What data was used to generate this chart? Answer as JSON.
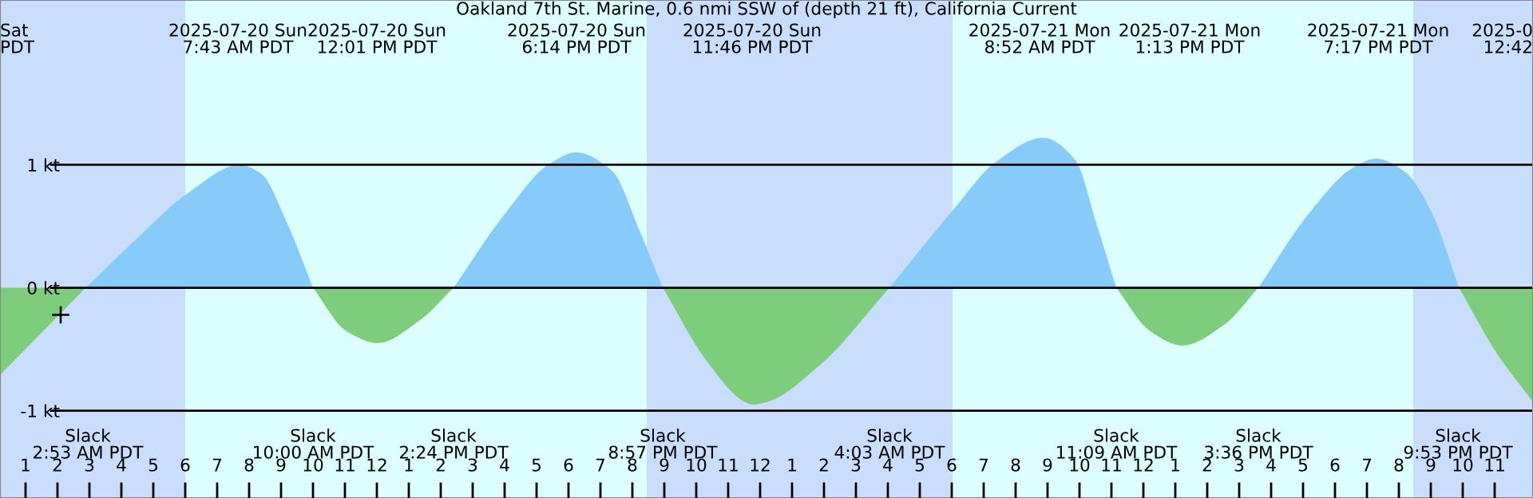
{
  "chart_data": {
    "type": "area",
    "title": "Oakland 7th St. Marine, 0.6 nmi SSW of (depth 21 ft), California Current",
    "x": [
      "2025-07-20T00:12",
      "2025-07-20T02:53",
      "2025-07-20T04:22",
      "2025-07-20T06:02",
      "2025-07-20T07:43",
      "2025-07-20T08:22",
      "2025-07-20T09:12",
      "2025-07-20T10:00",
      "2025-07-20T11:02",
      "2025-07-20T12:01",
      "2025-07-20T13:22",
      "2025-07-20T14:24",
      "2025-07-20T16:02",
      "2025-07-20T17:22",
      "2025-07-20T18:14",
      "2025-07-20T19:22",
      "2025-07-20T20:12",
      "2025-07-20T20:57",
      "2025-07-20T22:22",
      "2025-07-20T23:32",
      "2025-07-20T23:46",
      "2025-07-21T00:12",
      "2025-07-21T01:52",
      "2025-07-21T04:03",
      "2025-07-21T06:02",
      "2025-07-21T07:22",
      "2025-07-21T08:52",
      "2025-07-21T09:52",
      "2025-07-21T10:32",
      "2025-07-21T11:09",
      "2025-07-21T12:12",
      "2025-07-21T13:13",
      "2025-07-21T14:32",
      "2025-07-21T15:36",
      "2025-07-21T17:12",
      "2025-07-21T18:32",
      "2025-07-21T19:17",
      "2025-07-21T20:12",
      "2025-07-21T21:02",
      "2025-07-21T21:53",
      "2025-07-21T23:02",
      "2025-07-22T00:12"
    ],
    "series": [
      {
        "color": "#87cbfb",
        "values": [
          null,
          0,
          0.37,
          0.76,
          1.0,
          0.93,
          0.52,
          0,
          null,
          null,
          null,
          0,
          0.61,
          1.0,
          1.1,
          0.95,
          0.48,
          0,
          null,
          null,
          null,
          null,
          null,
          0,
          0.63,
          1.02,
          1.22,
          1.04,
          0.52,
          0,
          null,
          null,
          null,
          0,
          0.61,
          0.97,
          1.05,
          0.94,
          0.61,
          0,
          null,
          null
        ]
      },
      {
        "color": "#7dcd7d",
        "values": [
          -0.71,
          0,
          null,
          null,
          null,
          null,
          null,
          0,
          -0.35,
          -0.45,
          -0.26,
          0,
          null,
          null,
          null,
          null,
          null,
          0,
          -0.61,
          -0.93,
          -0.95,
          -0.93,
          -0.63,
          0,
          null,
          null,
          null,
          null,
          null,
          0,
          -0.35,
          -0.47,
          -0.3,
          0,
          null,
          null,
          null,
          null,
          null,
          0,
          -0.52,
          -0.93
        ]
      },
      {
        "type": "scatter",
        "marker": "cross",
        "color": "#000000",
        "x": [
          "2025-07-20T02:06"
        ],
        "values": [
          -0.22
        ]
      }
    ],
    "xlim": [
      "2025-07-20T00:12",
      "2025-07-22T00:12"
    ],
    "xticks": [
      {
        "value": "2025-07-20T01:00",
        "label": "1"
      },
      {
        "value": "2025-07-20T02:00",
        "label": "2"
      },
      {
        "value": "2025-07-20T03:00",
        "label": "3"
      },
      {
        "value": "2025-07-20T04:00",
        "label": "4"
      },
      {
        "value": "2025-07-20T05:00",
        "label": "5"
      },
      {
        "value": "2025-07-20T06:00",
        "label": "6"
      },
      {
        "value": "2025-07-20T07:00",
        "label": "7"
      },
      {
        "value": "2025-07-20T08:00",
        "label": "8"
      },
      {
        "value": "2025-07-20T09:00",
        "label": "9"
      },
      {
        "value": "2025-07-20T10:00",
        "label": "10"
      },
      {
        "value": "2025-07-20T11:00",
        "label": "11"
      },
      {
        "value": "2025-07-20T12:00",
        "label": "12"
      },
      {
        "value": "2025-07-20T13:00",
        "label": "1"
      },
      {
        "value": "2025-07-20T14:00",
        "label": "2"
      },
      {
        "value": "2025-07-20T15:00",
        "label": "3"
      },
      {
        "value": "2025-07-20T16:00",
        "label": "4"
      },
      {
        "value": "2025-07-20T17:00",
        "label": "5"
      },
      {
        "value": "2025-07-20T18:00",
        "label": "6"
      },
      {
        "value": "2025-07-20T19:00",
        "label": "7"
      },
      {
        "value": "2025-07-20T20:00",
        "label": "8"
      },
      {
        "value": "2025-07-20T21:00",
        "label": "9"
      },
      {
        "value": "2025-07-20T22:00",
        "label": "10"
      },
      {
        "value": "2025-07-20T23:00",
        "label": "11"
      },
      {
        "value": "2025-07-21T00:00",
        "label": "12"
      },
      {
        "value": "2025-07-21T01:00",
        "label": "1"
      },
      {
        "value": "2025-07-21T02:00",
        "label": "2"
      },
      {
        "value": "2025-07-21T03:00",
        "label": "3"
      },
      {
        "value": "2025-07-21T04:00",
        "label": "4"
      },
      {
        "value": "2025-07-21T05:00",
        "label": "5"
      },
      {
        "value": "2025-07-21T06:00",
        "label": "6"
      },
      {
        "value": "2025-07-21T07:00",
        "label": "7"
      },
      {
        "value": "2025-07-21T08:00",
        "label": "8"
      },
      {
        "value": "2025-07-21T09:00",
        "label": "9"
      },
      {
        "value": "2025-07-21T10:00",
        "label": "10"
      },
      {
        "value": "2025-07-21T11:00",
        "label": "11"
      },
      {
        "value": "2025-07-21T12:00",
        "label": "12"
      },
      {
        "value": "2025-07-21T13:00",
        "label": "1"
      },
      {
        "value": "2025-07-21T14:00",
        "label": "2"
      },
      {
        "value": "2025-07-21T15:00",
        "label": "3"
      },
      {
        "value": "2025-07-21T16:00",
        "label": "4"
      },
      {
        "value": "2025-07-21T17:00",
        "label": "5"
      },
      {
        "value": "2025-07-21T18:00",
        "label": "6"
      },
      {
        "value": "2025-07-21T19:00",
        "label": "7"
      },
      {
        "value": "2025-07-21T20:00",
        "label": "8"
      },
      {
        "value": "2025-07-21T21:00",
        "label": "9"
      },
      {
        "value": "2025-07-21T22:00",
        "label": "10"
      },
      {
        "value": "2025-07-21T23:00",
        "label": "11"
      }
    ],
    "ylim": [
      -1.71,
      2.34
    ],
    "yticks": [
      {
        "value": -1,
        "label": "-1 kt"
      },
      {
        "value": 0,
        "label": "0 kt"
      },
      {
        "value": 1,
        "label": "1 kt"
      }
    ],
    "grid": "y",
    "bands": [
      {
        "axis": "x",
        "from": "2025-07-20T00:12",
        "to": "2025-07-20T06:00",
        "color": "#c9ddfc"
      },
      {
        "axis": "x",
        "from": "2025-07-20T06:00",
        "to": "2025-07-20T20:27",
        "color": "#ddfefe"
      },
      {
        "axis": "x",
        "from": "2025-07-20T20:27",
        "to": "2025-07-21T06:02",
        "color": "#c9ddfc"
      },
      {
        "axis": "x",
        "from": "2025-07-21T06:02",
        "to": "2025-07-21T20:27",
        "color": "#ddfefe"
      },
      {
        "axis": "x",
        "from": "2025-07-21T20:27",
        "to": "2025-07-22T00:12",
        "color": "#c9ddfc"
      }
    ],
    "annotations": [
      "Sat\nPDT",
      "2025-0\n12:42",
      "2025-07-20 Sun\n7:43 AM PDT",
      "2025-07-20 Sun\n12:01 PM PDT",
      "2025-07-20 Sun\n6:14 PM PDT",
      "2025-07-20 Sun\n11:46 PM PDT",
      "2025-07-21 Mon\n8:52 AM PDT",
      "2025-07-21 Mon\n1:13 PM PDT",
      "2025-07-21 Mon\n7:17 PM PDT",
      "Slack\n2:53 AM PDT",
      "Slack\n10:00 AM PDT",
      "Slack\n2:24 PM PDT",
      "Slack\n8:57 PM PDT",
      "Slack\n4:03 AM PDT",
      "Slack\n11:09 AM PDT",
      "Slack\n3:36 PM PDT",
      "Slack\n9:53 PM PDT"
    ]
  }
}
